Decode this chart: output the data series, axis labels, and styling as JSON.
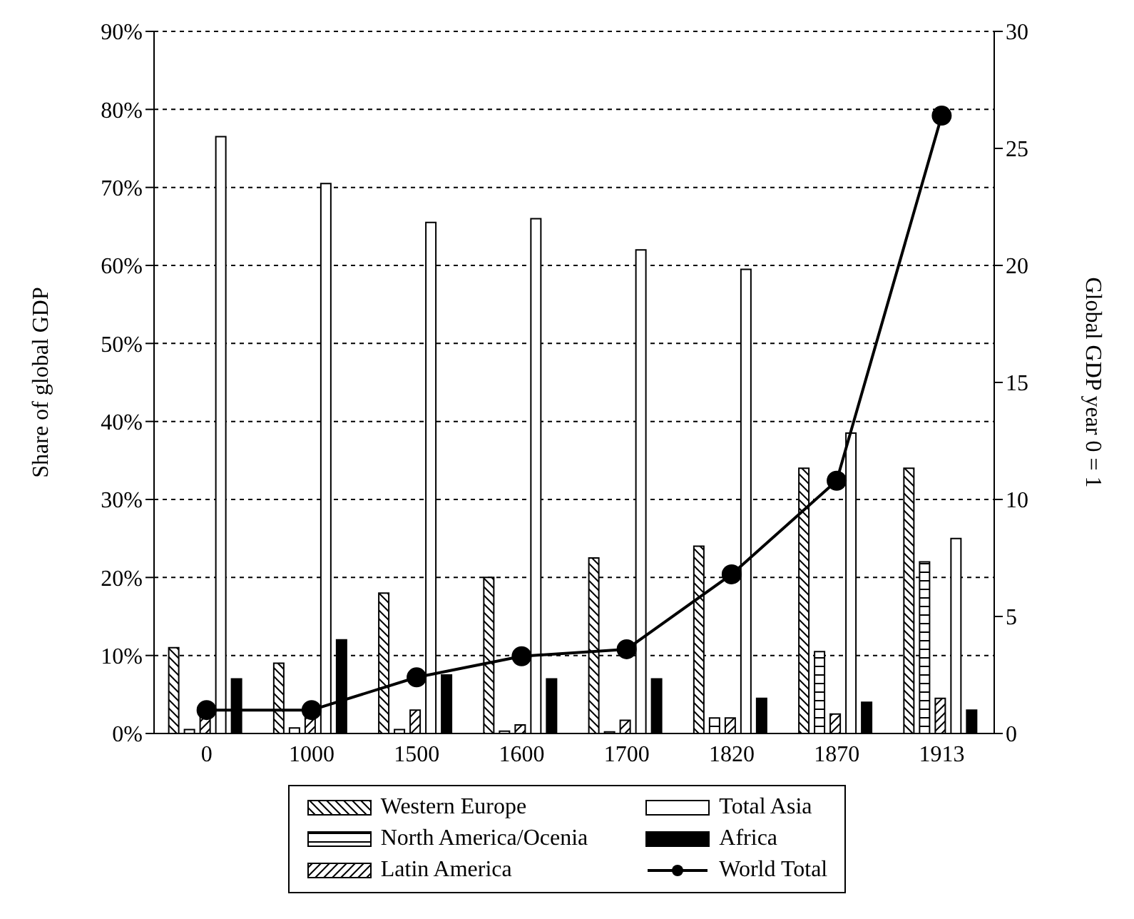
{
  "chart_data": {
    "type": "bar",
    "ylabel": "Share of global GDP",
    "y2label": "Global GDP year 0 = 1",
    "categories": [
      "0",
      "1000",
      "1500",
      "1600",
      "1700",
      "1820",
      "1870",
      "1913"
    ],
    "series": [
      {
        "name": "Western Europe",
        "color": "#000000",
        "values": [
          11,
          9,
          18,
          20,
          22.5,
          24,
          34,
          34
        ]
      },
      {
        "name": "North America/Ocenia",
        "color": "#000000",
        "values": [
          0.5,
          0.7,
          0.5,
          0.3,
          0.2,
          2,
          10.5,
          22
        ]
      },
      {
        "name": "Latin America",
        "color": "#000000",
        "values": [
          2.2,
          2.9,
          3,
          1.1,
          1.7,
          2,
          2.5,
          4.5
        ]
      },
      {
        "name": "Total Asia",
        "color": "#ffffff",
        "values": [
          76.5,
          70.5,
          65.5,
          66,
          62,
          59.5,
          38.5,
          25
        ]
      },
      {
        "name": "Africa",
        "color": "#000000",
        "values": [
          7,
          12,
          7.5,
          7,
          7,
          4.5,
          4,
          3
        ]
      },
      {
        "name": "World Total",
        "type": "line",
        "axis": "y2",
        "color": "#000000",
        "marker": "circle",
        "values": [
          1,
          1,
          2.4,
          3.3,
          3.6,
          6.8,
          10.8,
          26.4
        ]
      }
    ],
    "ylim": [
      0,
      90
    ],
    "yticks": [
      {
        "value": 0,
        "label": "0%"
      },
      {
        "value": 10,
        "label": "10%"
      },
      {
        "value": 20,
        "label": "20%"
      },
      {
        "value": 30,
        "label": "30%"
      },
      {
        "value": 40,
        "label": "40%"
      },
      {
        "value": 50,
        "label": "50%"
      },
      {
        "value": 60,
        "label": "60%"
      },
      {
        "value": 70,
        "label": "70%"
      },
      {
        "value": 80,
        "label": "80%"
      },
      {
        "value": 90,
        "label": "90%"
      }
    ],
    "y2lim": [
      0,
      30
    ],
    "y2ticks": [
      0,
      5,
      10,
      15,
      20,
      25,
      30
    ],
    "grid": "y",
    "legend": "bottom",
    "marker": "circle",
    "line_style": "solid"
  }
}
